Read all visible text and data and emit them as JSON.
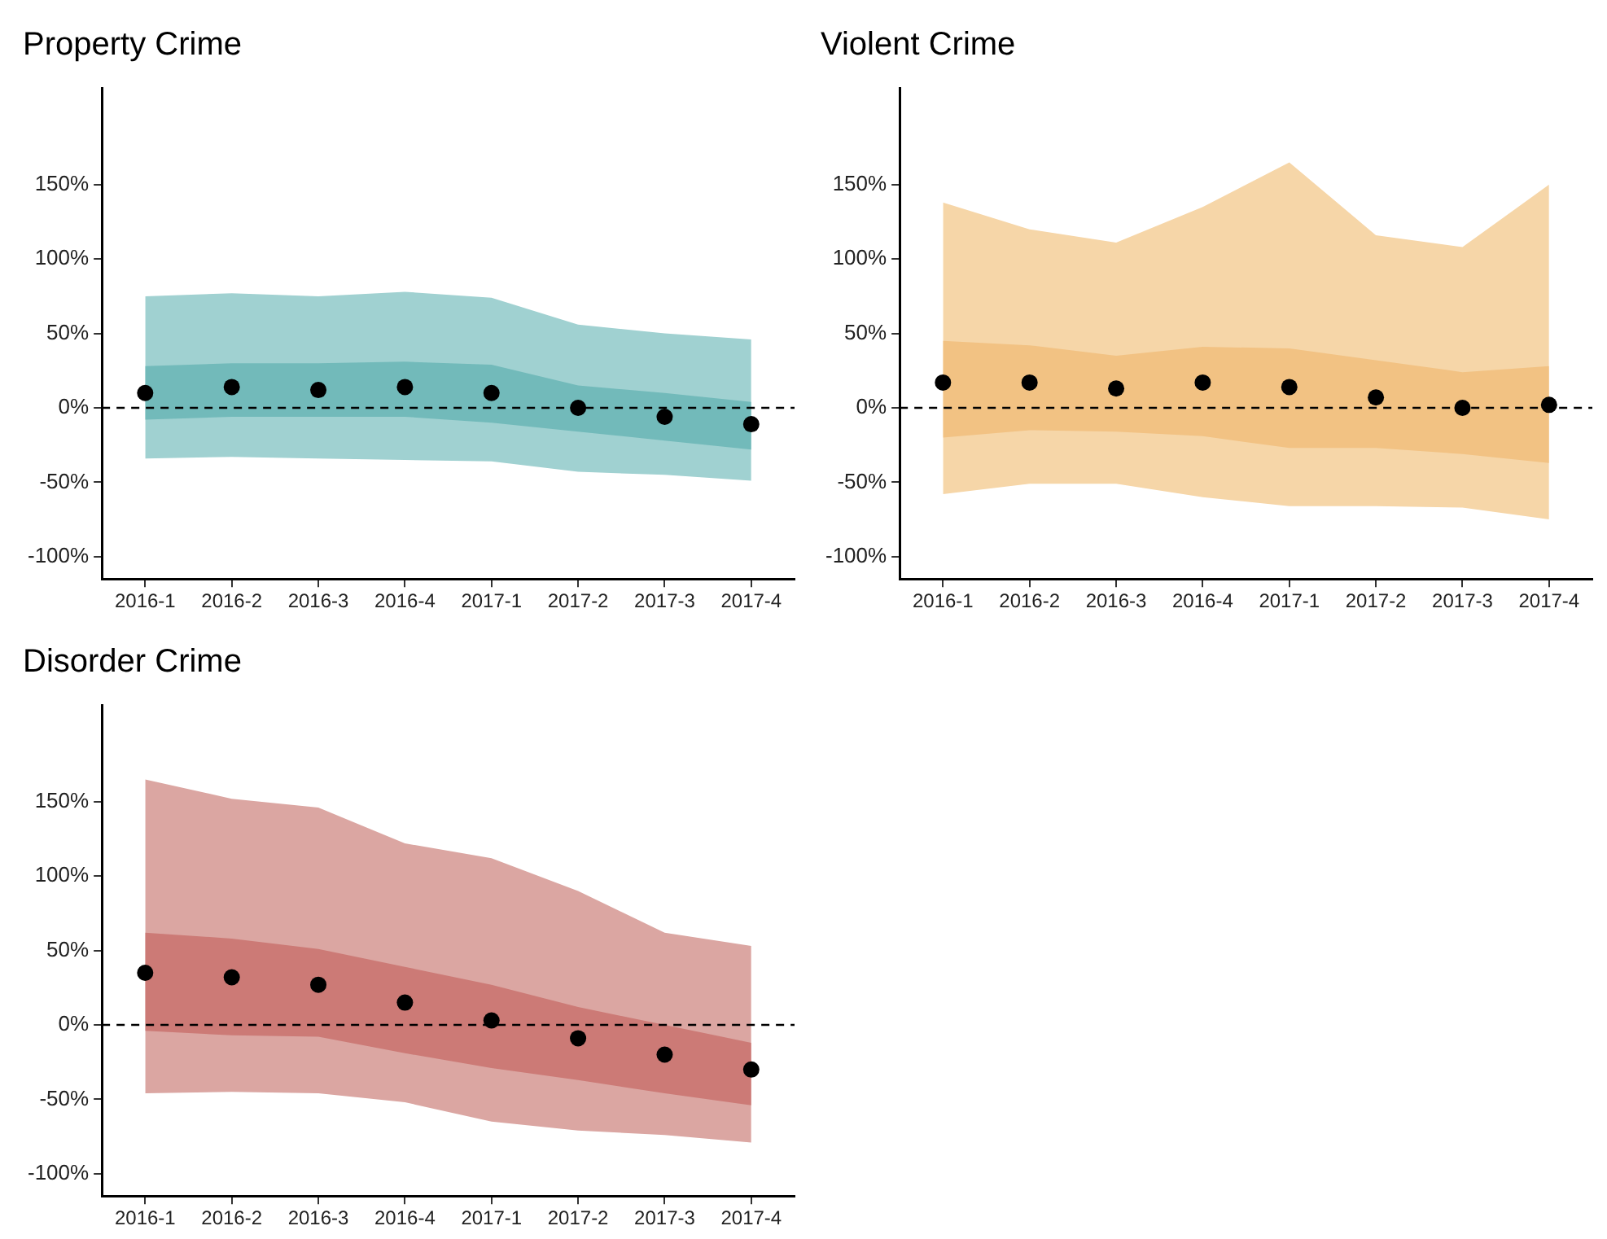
{
  "chart_data": [
    {
      "type": "scatter",
      "title": "Property Crime",
      "categories": [
        "2016-1",
        "2016-2",
        "2016-3",
        "2016-4",
        "2017-1",
        "2017-2",
        "2017-3",
        "2017-4"
      ],
      "ylim": [
        -115,
        215
      ],
      "yticks": [
        {
          "value": -100,
          "label": "-100%"
        },
        {
          "value": -50,
          "label": "-50%"
        },
        {
          "value": 0,
          "label": "0%"
        },
        {
          "value": 50,
          "label": "50%"
        },
        {
          "value": 100,
          "label": "100%"
        },
        {
          "value": 150,
          "label": "150%"
        }
      ],
      "marker": "circle",
      "ref_lines": [
        {
          "axis": "y",
          "value": 0,
          "color": "#000000",
          "line_style": "dashed"
        }
      ],
      "series": [
        {
          "type": "area",
          "color": "#a0d1d1",
          "values": [
            null,
            null,
            null,
            null,
            null,
            null,
            null,
            null
          ],
          "lower": [
            -34,
            -33,
            -34,
            -35,
            -36,
            -43,
            -45,
            -49
          ],
          "upper": [
            75,
            77,
            75,
            78,
            74,
            56,
            50,
            46
          ]
        },
        {
          "type": "area",
          "color": "#72baba",
          "values": [
            null,
            null,
            null,
            null,
            null,
            null,
            null,
            null
          ],
          "lower": [
            -8,
            -6,
            -6,
            -6,
            -10,
            -16,
            -22,
            -28
          ],
          "upper": [
            28,
            30,
            30,
            31,
            29,
            15,
            10,
            4
          ]
        },
        {
          "type": "scatter",
          "color": "#000000",
          "values": [
            10,
            14,
            12,
            14,
            10,
            0,
            -6,
            -11
          ]
        }
      ]
    },
    {
      "type": "scatter",
      "title": "Violent Crime",
      "categories": [
        "2016-1",
        "2016-2",
        "2016-3",
        "2016-4",
        "2017-1",
        "2017-2",
        "2017-3",
        "2017-4"
      ],
      "ylim": [
        -115,
        215
      ],
      "yticks": [
        {
          "value": -100,
          "label": "-100%"
        },
        {
          "value": -50,
          "label": "-50%"
        },
        {
          "value": 0,
          "label": "0%"
        },
        {
          "value": 50,
          "label": "50%"
        },
        {
          "value": 100,
          "label": "100%"
        },
        {
          "value": 150,
          "label": "150%"
        }
      ],
      "marker": "circle",
      "ref_lines": [
        {
          "axis": "y",
          "value": 0,
          "color": "#000000",
          "line_style": "dashed"
        }
      ],
      "series": [
        {
          "type": "area",
          "color": "#f6d6a8",
          "values": [
            null,
            null,
            null,
            null,
            null,
            null,
            null,
            null
          ],
          "lower": [
            -58,
            -51,
            -51,
            -60,
            -66,
            -66,
            -67,
            -75
          ],
          "upper": [
            138,
            120,
            111,
            135,
            165,
            116,
            108,
            150
          ]
        },
        {
          "type": "area",
          "color": "#f2c283",
          "values": [
            null,
            null,
            null,
            null,
            null,
            null,
            null,
            null
          ],
          "lower": [
            -20,
            -15,
            -16,
            -19,
            -27,
            -27,
            -31,
            -37
          ],
          "upper": [
            45,
            42,
            35,
            41,
            40,
            32,
            24,
            28
          ]
        },
        {
          "type": "scatter",
          "color": "#000000",
          "values": [
            17,
            17,
            13,
            17,
            14,
            7,
            0,
            2
          ]
        }
      ]
    },
    {
      "type": "scatter",
      "title": "Disorder Crime",
      "categories": [
        "2016-1",
        "2016-2",
        "2016-3",
        "2016-4",
        "2017-1",
        "2017-2",
        "2017-3",
        "2017-4"
      ],
      "ylim": [
        -115,
        215
      ],
      "yticks": [
        {
          "value": -100,
          "label": "-100%"
        },
        {
          "value": -50,
          "label": "-50%"
        },
        {
          "value": 0,
          "label": "0%"
        },
        {
          "value": 50,
          "label": "50%"
        },
        {
          "value": 100,
          "label": "100%"
        },
        {
          "value": 150,
          "label": "150%"
        }
      ],
      "marker": "circle",
      "ref_lines": [
        {
          "axis": "y",
          "value": 0,
          "color": "#000000",
          "line_style": "dashed"
        }
      ],
      "series": [
        {
          "type": "area",
          "color": "#dba6a2",
          "values": [
            null,
            null,
            null,
            null,
            null,
            null,
            null,
            null
          ],
          "lower": [
            -46,
            -45,
            -46,
            -52,
            -65,
            -71,
            -74,
            -79
          ],
          "upper": [
            165,
            152,
            146,
            122,
            112,
            90,
            62,
            53
          ]
        },
        {
          "type": "area",
          "color": "#cc7a76",
          "values": [
            null,
            null,
            null,
            null,
            null,
            null,
            null,
            null
          ],
          "lower": [
            -4,
            -7,
            -8,
            -19,
            -29,
            -37,
            -46,
            -54
          ],
          "upper": [
            62,
            58,
            51,
            39,
            27,
            12,
            0,
            -12
          ]
        },
        {
          "type": "scatter",
          "color": "#000000",
          "values": [
            35,
            32,
            27,
            15,
            3,
            -9,
            -20,
            -30
          ]
        }
      ]
    }
  ]
}
